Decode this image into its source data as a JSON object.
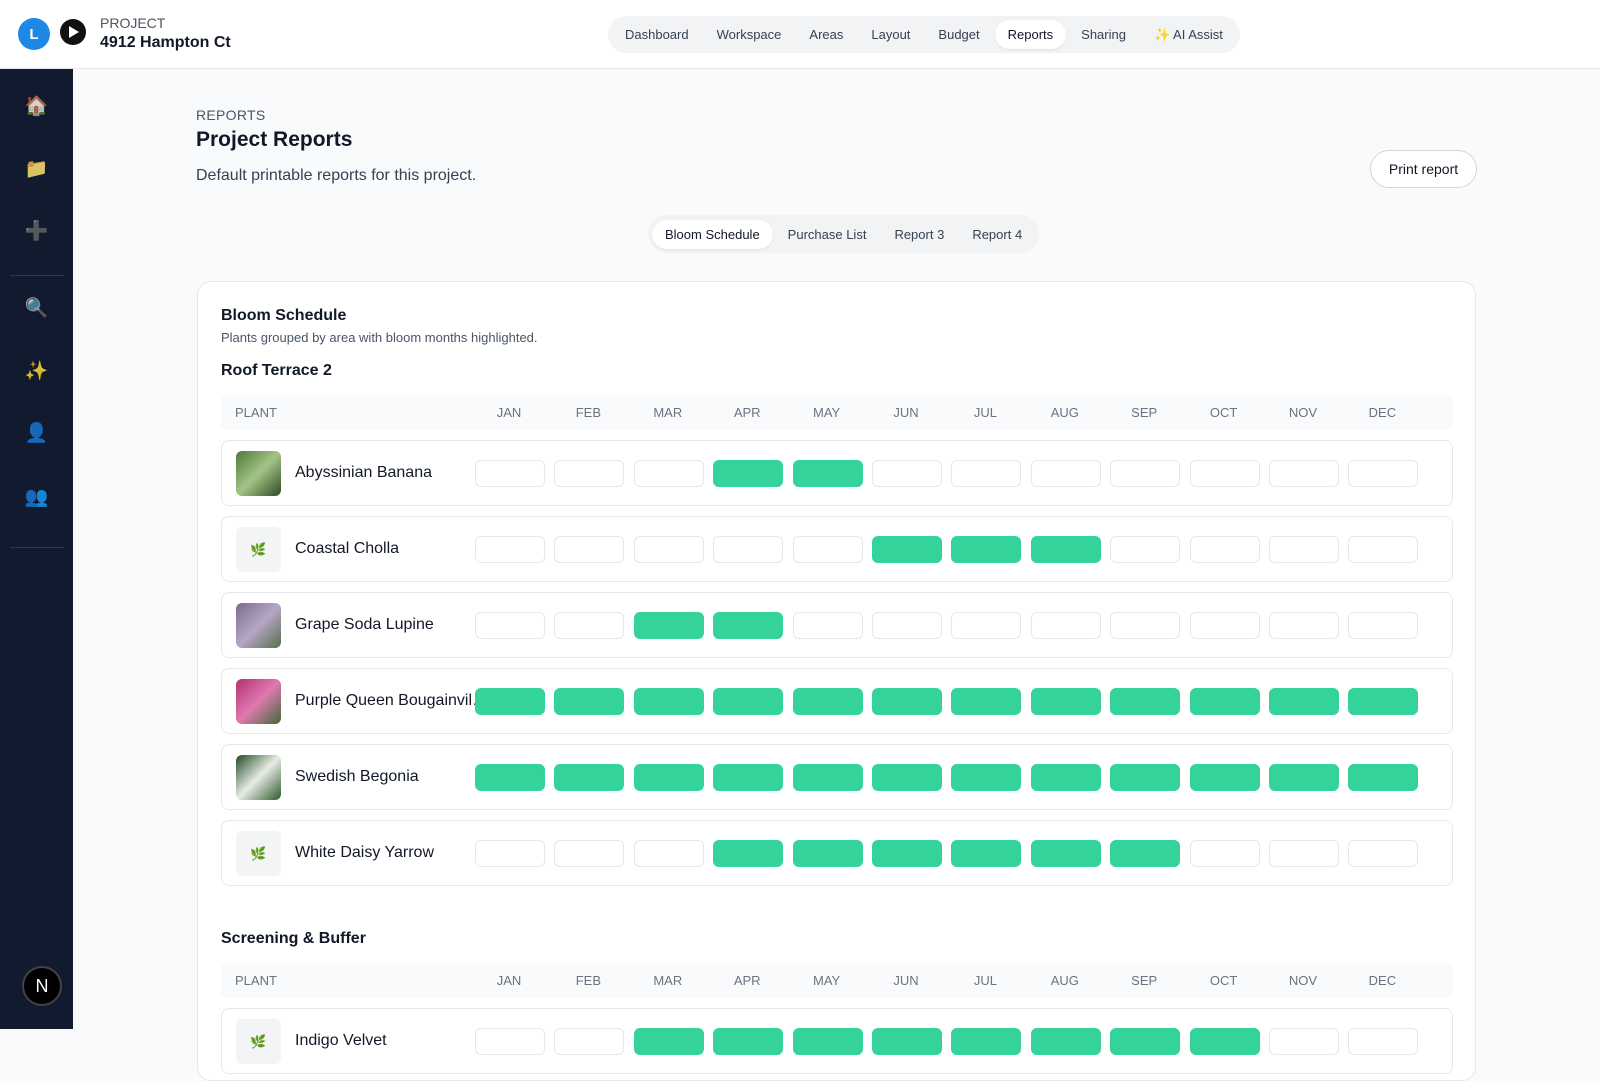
{
  "topbar": {
    "avatar": "L",
    "project_label": "PROJECT",
    "project_name": "4912 Hampton Ct",
    "nav": [
      "Dashboard",
      "Workspace",
      "Areas",
      "Layout",
      "Budget",
      "Reports",
      "Sharing",
      "✨ AI Assist"
    ],
    "active_nav": 5
  },
  "sidebar": {
    "icons_top": [
      "🏠",
      "📁",
      "➕"
    ],
    "icons_bottom": [
      "🔍",
      "✨",
      "👤",
      "👥"
    ],
    "badge": "N"
  },
  "header": {
    "eyebrow": "REPORTS",
    "title": "Project Reports",
    "description": "Default printable reports for this project.",
    "print_button": "Print report"
  },
  "tabs": {
    "items": [
      "Bloom Schedule",
      "Purchase List",
      "Report 3",
      "Report 4"
    ],
    "active": 0
  },
  "report": {
    "title": "Bloom Schedule",
    "subtitle": "Plants grouped by area with bloom months highlighted.",
    "plant_header": "PLANT",
    "months": [
      "JAN",
      "FEB",
      "MAR",
      "APR",
      "MAY",
      "JUN",
      "JUL",
      "AUG",
      "SEP",
      "OCT",
      "NOV",
      "DEC"
    ],
    "groups": [
      {
        "name": "Roof Terrace 2",
        "plants": [
          {
            "name": "Abyssinian Banana",
            "bloom": [
              0,
              0,
              0,
              1,
              1,
              0,
              0,
              0,
              0,
              0,
              0,
              0
            ]
          },
          {
            "name": "Coastal Cholla",
            "icon": "🌿",
            "bloom": [
              0,
              0,
              0,
              0,
              0,
              1,
              1,
              1,
              0,
              0,
              0,
              0
            ]
          },
          {
            "name": "Grape Soda Lupine",
            "bloom": [
              0,
              0,
              1,
              1,
              0,
              0,
              0,
              0,
              0,
              0,
              0,
              0
            ]
          },
          {
            "name": "Purple Queen Bougainvil…",
            "bloom": [
              1,
              1,
              1,
              1,
              1,
              1,
              1,
              1,
              1,
              1,
              1,
              1
            ]
          },
          {
            "name": "Swedish Begonia",
            "bloom": [
              1,
              1,
              1,
              1,
              1,
              1,
              1,
              1,
              1,
              1,
              1,
              1
            ]
          },
          {
            "name": "White Daisy Yarrow",
            "icon": "🌿",
            "bloom": [
              0,
              0,
              0,
              1,
              1,
              1,
              1,
              1,
              1,
              0,
              0,
              0
            ]
          }
        ]
      },
      {
        "name": "Screening & Buffer",
        "plants": [
          {
            "name": "Indigo Velvet",
            "icon": "🌿",
            "bloom": [
              0,
              0,
              1,
              1,
              1,
              1,
              1,
              1,
              1,
              1,
              0,
              0
            ]
          }
        ]
      }
    ]
  }
}
